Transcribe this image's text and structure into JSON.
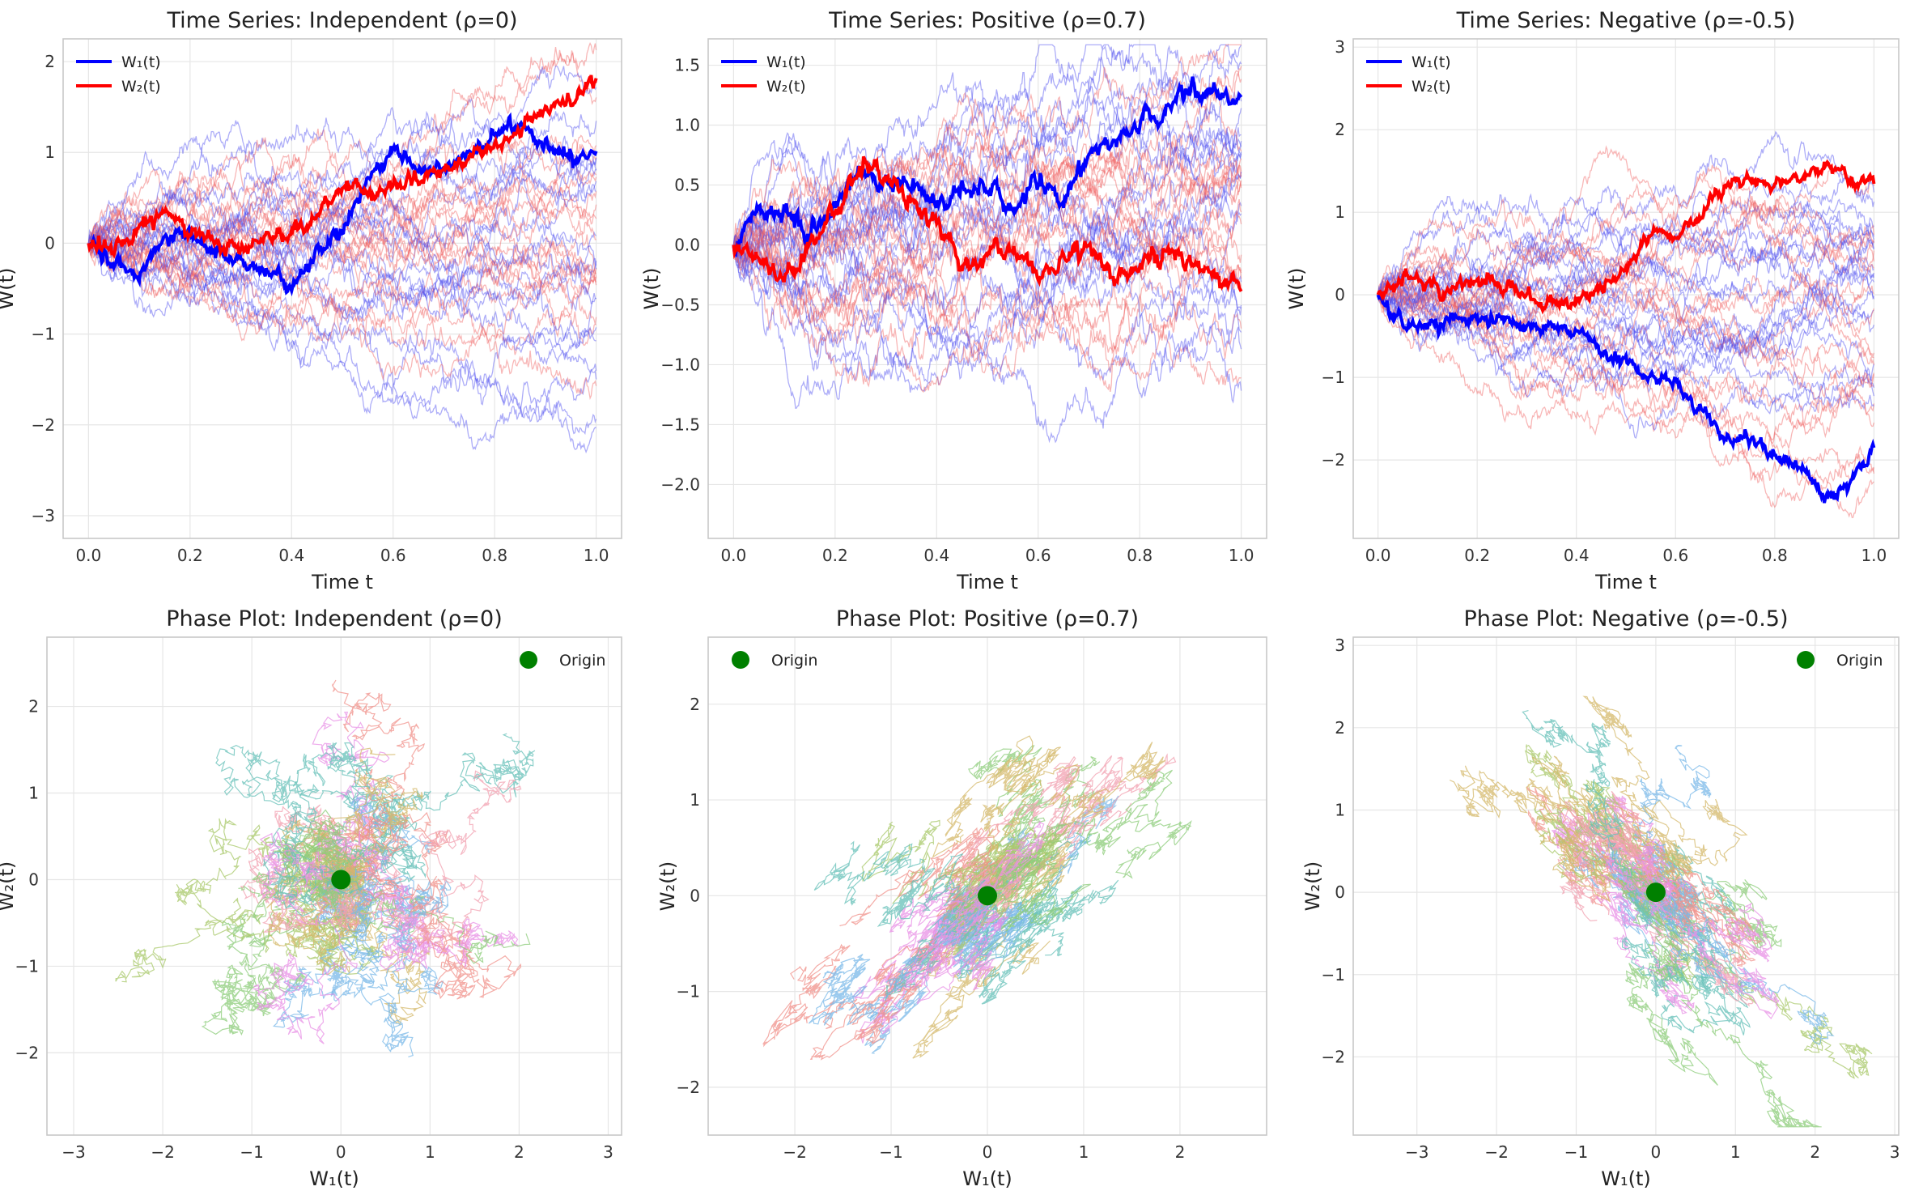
{
  "figure": {
    "type": "multi-panel",
    "rows": 2,
    "cols": 3
  },
  "colors": {
    "w1_highlight": "#0000ff",
    "w2_highlight": "#ff0000",
    "w1_faint": "#4a4af0",
    "w2_faint": "#f06060",
    "origin": "#008000",
    "grid": "#e6e6e6",
    "spine": "#c8c8c8",
    "phase_palette": [
      "#f2a0b0",
      "#d4b86a",
      "#8ccc7a",
      "#66c0b8",
      "#7ab8e8",
      "#e890e6",
      "#f0908a",
      "#a8c86a"
    ]
  },
  "chart_data": [
    {
      "id": "ts-independent",
      "type": "line",
      "title": "Time Series: Independent (ρ=0)",
      "xlabel": "Time t",
      "ylabel": "W(t)",
      "xlim": [
        -0.05,
        1.05
      ],
      "ylim": [
        -3.25,
        2.25
      ],
      "xticks": [
        0.0,
        0.2,
        0.4,
        0.6,
        0.8,
        1.0
      ],
      "xtick_labels": [
        "0.0",
        "0.2",
        "0.4",
        "0.6",
        "0.8",
        "1.0"
      ],
      "yticks": [
        -3,
        -2,
        -1,
        0,
        1,
        2
      ],
      "ytick_labels": [
        "−3",
        "−2",
        "−1",
        "0",
        "1",
        "2"
      ],
      "grid": true,
      "legend": {
        "placement": "top-left",
        "entries": [
          "W₁(t)",
          "W₂(t)"
        ]
      },
      "rho": 0,
      "background_paths": 20,
      "highlighted_series": [
        {
          "name": "W₁(t)",
          "x": [
            0.0,
            0.05,
            0.1,
            0.15,
            0.2,
            0.25,
            0.3,
            0.35,
            0.4,
            0.45,
            0.5,
            0.55,
            0.6,
            0.65,
            0.7,
            0.75,
            0.8,
            0.85,
            0.9,
            0.95,
            1.0
          ],
          "y": [
            0.0,
            -0.25,
            -0.35,
            0.05,
            0.1,
            -0.1,
            -0.15,
            -0.3,
            -0.45,
            -0.15,
            0.15,
            0.7,
            1.05,
            0.8,
            0.85,
            1.0,
            1.2,
            1.3,
            1.1,
            0.95,
            1.0
          ]
        },
        {
          "name": "W₂(t)",
          "x": [
            0.0,
            0.05,
            0.1,
            0.15,
            0.2,
            0.25,
            0.3,
            0.35,
            0.4,
            0.45,
            0.5,
            0.55,
            0.6,
            0.65,
            0.7,
            0.75,
            0.8,
            0.85,
            0.9,
            0.95,
            1.0
          ],
          "y": [
            0.0,
            -0.05,
            0.25,
            0.3,
            0.1,
            0.05,
            -0.1,
            0.05,
            0.1,
            0.3,
            0.65,
            0.55,
            0.6,
            0.7,
            0.8,
            0.95,
            1.1,
            1.25,
            1.5,
            1.6,
            1.8
          ]
        }
      ]
    },
    {
      "id": "ts-positive",
      "type": "line",
      "title": "Time Series: Positive (ρ=0.7)",
      "xlabel": "Time t",
      "ylabel": "W(t)",
      "xlim": [
        -0.05,
        1.05
      ],
      "ylim": [
        -2.45,
        1.72
      ],
      "xticks": [
        0.0,
        0.2,
        0.4,
        0.6,
        0.8,
        1.0
      ],
      "xtick_labels": [
        "0.0",
        "0.2",
        "0.4",
        "0.6",
        "0.8",
        "1.0"
      ],
      "yticks": [
        -2.0,
        -1.5,
        -1.0,
        -0.5,
        0.0,
        0.5,
        1.0,
        1.5
      ],
      "ytick_labels": [
        "−2.0",
        "−1.5",
        "−1.0",
        "−0.5",
        "0.0",
        "0.5",
        "1.0",
        "1.5"
      ],
      "grid": true,
      "legend": {
        "placement": "top-left",
        "entries": [
          "W₁(t)",
          "W₂(t)"
        ]
      },
      "rho": 0.7,
      "background_paths": 20,
      "highlighted_series": [
        {
          "name": "W₁(t)",
          "x": [
            0.0,
            0.05,
            0.1,
            0.15,
            0.2,
            0.25,
            0.3,
            0.35,
            0.4,
            0.45,
            0.5,
            0.55,
            0.6,
            0.65,
            0.7,
            0.75,
            0.8,
            0.85,
            0.9,
            0.95,
            1.0
          ],
          "y": [
            0.0,
            0.3,
            0.25,
            0.1,
            0.35,
            0.6,
            0.5,
            0.55,
            0.3,
            0.45,
            0.55,
            0.3,
            0.5,
            0.45,
            0.75,
            0.85,
            0.95,
            1.15,
            1.3,
            1.25,
            1.2
          ]
        },
        {
          "name": "W₂(t)",
          "x": [
            0.0,
            0.05,
            0.1,
            0.15,
            0.2,
            0.25,
            0.3,
            0.35,
            0.4,
            0.45,
            0.5,
            0.55,
            0.6,
            0.65,
            0.7,
            0.75,
            0.8,
            0.85,
            0.9,
            0.95,
            1.0
          ],
          "y": [
            0.0,
            -0.1,
            -0.25,
            0.0,
            0.3,
            0.65,
            0.55,
            0.35,
            0.15,
            -0.2,
            -0.1,
            -0.05,
            -0.2,
            -0.15,
            -0.05,
            -0.25,
            -0.2,
            -0.05,
            -0.15,
            -0.2,
            -0.35
          ]
        }
      ]
    },
    {
      "id": "ts-negative",
      "type": "line",
      "title": "Time Series: Negative (ρ=-0.5)",
      "xlabel": "Time t",
      "ylabel": "W(t)",
      "xlim": [
        -0.05,
        1.05
      ],
      "ylim": [
        -2.95,
        3.1
      ],
      "xticks": [
        0.0,
        0.2,
        0.4,
        0.6,
        0.8,
        1.0
      ],
      "xtick_labels": [
        "0.0",
        "0.2",
        "0.4",
        "0.6",
        "0.8",
        "1.0"
      ],
      "yticks": [
        -2,
        -1,
        0,
        1,
        2,
        3
      ],
      "ytick_labels": [
        "−2",
        "−1",
        "0",
        "1",
        "2",
        "3"
      ],
      "grid": true,
      "legend": {
        "placement": "top-left",
        "entries": [
          "W₁(t)",
          "W₂(t)"
        ]
      },
      "rho": -0.5,
      "background_paths": 20,
      "highlighted_series": [
        {
          "name": "W₁(t)",
          "x": [
            0.0,
            0.05,
            0.1,
            0.15,
            0.2,
            0.25,
            0.3,
            0.35,
            0.4,
            0.45,
            0.5,
            0.55,
            0.6,
            0.65,
            0.7,
            0.75,
            0.8,
            0.85,
            0.9,
            0.95,
            1.0
          ],
          "y": [
            0.0,
            -0.35,
            -0.4,
            -0.3,
            -0.3,
            -0.25,
            -0.4,
            -0.35,
            -0.45,
            -0.65,
            -0.8,
            -1.0,
            -1.1,
            -1.4,
            -1.75,
            -1.7,
            -1.95,
            -2.05,
            -2.5,
            -2.3,
            -1.8
          ]
        },
        {
          "name": "W₂(t)",
          "x": [
            0.0,
            0.05,
            0.1,
            0.15,
            0.2,
            0.25,
            0.3,
            0.35,
            0.4,
            0.45,
            0.5,
            0.55,
            0.6,
            0.65,
            0.7,
            0.75,
            0.8,
            0.85,
            0.9,
            0.95,
            1.0
          ],
          "y": [
            0.0,
            0.2,
            0.15,
            0.05,
            0.2,
            0.1,
            0.0,
            -0.05,
            -0.1,
            0.0,
            0.35,
            0.8,
            0.7,
            0.95,
            1.35,
            1.4,
            1.3,
            1.45,
            1.55,
            1.4,
            1.38
          ]
        }
      ]
    },
    {
      "id": "phase-independent",
      "type": "line",
      "title": "Phase Plot: Independent (ρ=0)",
      "xlabel": "W₁(t)",
      "ylabel": "W₂(t)",
      "xlim": [
        -3.3,
        3.15
      ],
      "ylim": [
        -2.95,
        2.8
      ],
      "xticks": [
        -3,
        -2,
        -1,
        0,
        1,
        2,
        3
      ],
      "xtick_labels": [
        "−3",
        "−2",
        "−1",
        "0",
        "1",
        "2",
        "3"
      ],
      "yticks": [
        -2,
        -1,
        0,
        1,
        2
      ],
      "ytick_labels": [
        "−2",
        "−1",
        "0",
        "1",
        "2"
      ],
      "grid": true,
      "legend": {
        "placement": "top-right",
        "entries": [
          "Origin"
        ]
      },
      "rho": 0,
      "trajectories": 30,
      "origin_point": [
        0,
        0
      ]
    },
    {
      "id": "phase-positive",
      "type": "line",
      "title": "Phase Plot: Positive (ρ=0.7)",
      "xlabel": "W₁(t)",
      "ylabel": "W₂(t)",
      "xlim": [
        -2.9,
        2.9
      ],
      "ylim": [
        -2.5,
        2.7
      ],
      "xticks": [
        -2,
        -1,
        0,
        1,
        2
      ],
      "xtick_labels": [
        "−2",
        "−1",
        "0",
        "1",
        "2"
      ],
      "yticks": [
        -2,
        -1,
        0,
        1,
        2
      ],
      "ytick_labels": [
        "−2",
        "−1",
        "0",
        "1",
        "2"
      ],
      "grid": true,
      "legend": {
        "placement": "top-left",
        "entries": [
          "Origin"
        ]
      },
      "rho": 0.7,
      "trajectories": 30,
      "origin_point": [
        0,
        0
      ]
    },
    {
      "id": "phase-negative",
      "type": "line",
      "title": "Phase Plot: Negative (ρ=-0.5)",
      "xlabel": "W₁(t)",
      "ylabel": "W₂(t)",
      "xlim": [
        -3.8,
        3.05
      ],
      "ylim": [
        -2.95,
        3.1
      ],
      "xticks": [
        -3,
        -2,
        -1,
        0,
        1,
        2,
        3
      ],
      "xtick_labels": [
        "−3",
        "−2",
        "−1",
        "0",
        "1",
        "2",
        "3"
      ],
      "yticks": [
        -2,
        -1,
        0,
        1,
        2,
        3
      ],
      "ytick_labels": [
        "−2",
        "−1",
        "0",
        "1",
        "2",
        "3"
      ],
      "grid": true,
      "legend": {
        "placement": "top-right",
        "entries": [
          "Origin"
        ]
      },
      "rho": -0.5,
      "trajectories": 30,
      "origin_point": [
        0,
        0
      ]
    }
  ]
}
